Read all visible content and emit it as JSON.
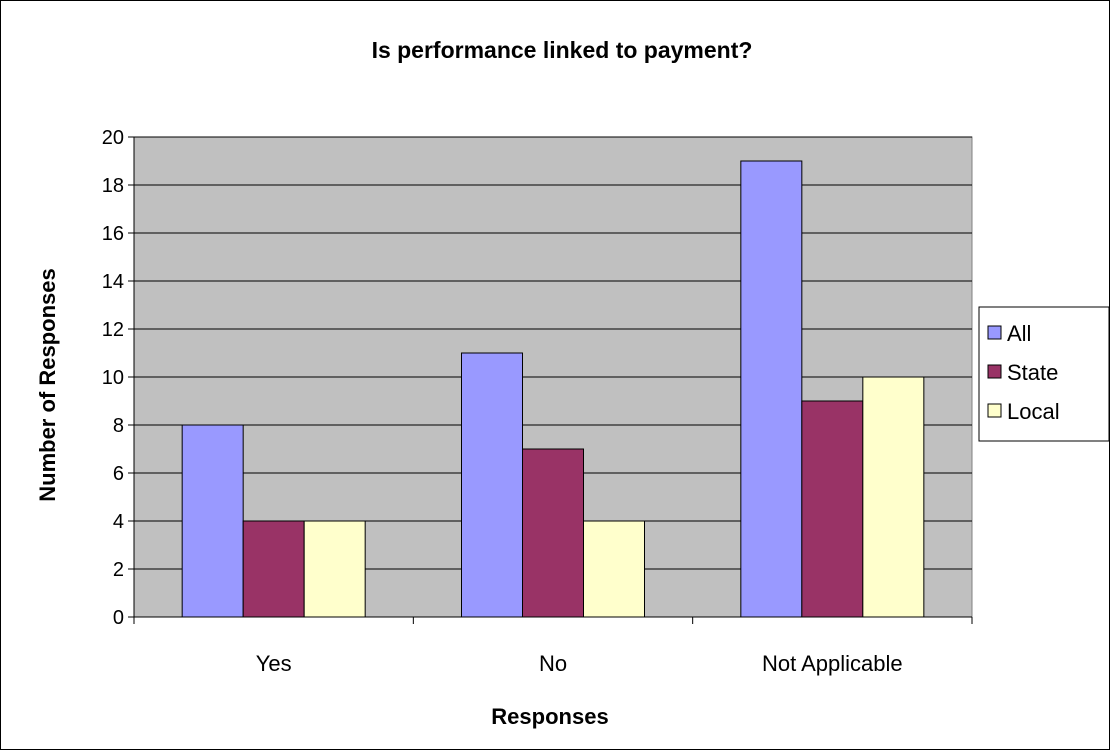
{
  "chart_data": {
    "type": "bar",
    "title": "Is performance linked to payment?",
    "xlabel": "Responses",
    "ylabel": "Number of Responses",
    "categories": [
      "Yes",
      "No",
      "Not Applicable"
    ],
    "series": [
      {
        "name": "All",
        "values": [
          8,
          11,
          19
        ],
        "color": "#9999ff"
      },
      {
        "name": "State",
        "values": [
          4,
          7,
          9
        ],
        "color": "#993366"
      },
      {
        "name": "Local",
        "values": [
          4,
          4,
          10
        ],
        "color": "#ffffcc"
      }
    ],
    "ylim": [
      0,
      20
    ],
    "yticks": [
      0,
      2,
      4,
      6,
      8,
      10,
      12,
      14,
      16,
      18,
      20
    ],
    "grid": true,
    "plot_background": "#c0c0c0",
    "legend_position": "right"
  }
}
